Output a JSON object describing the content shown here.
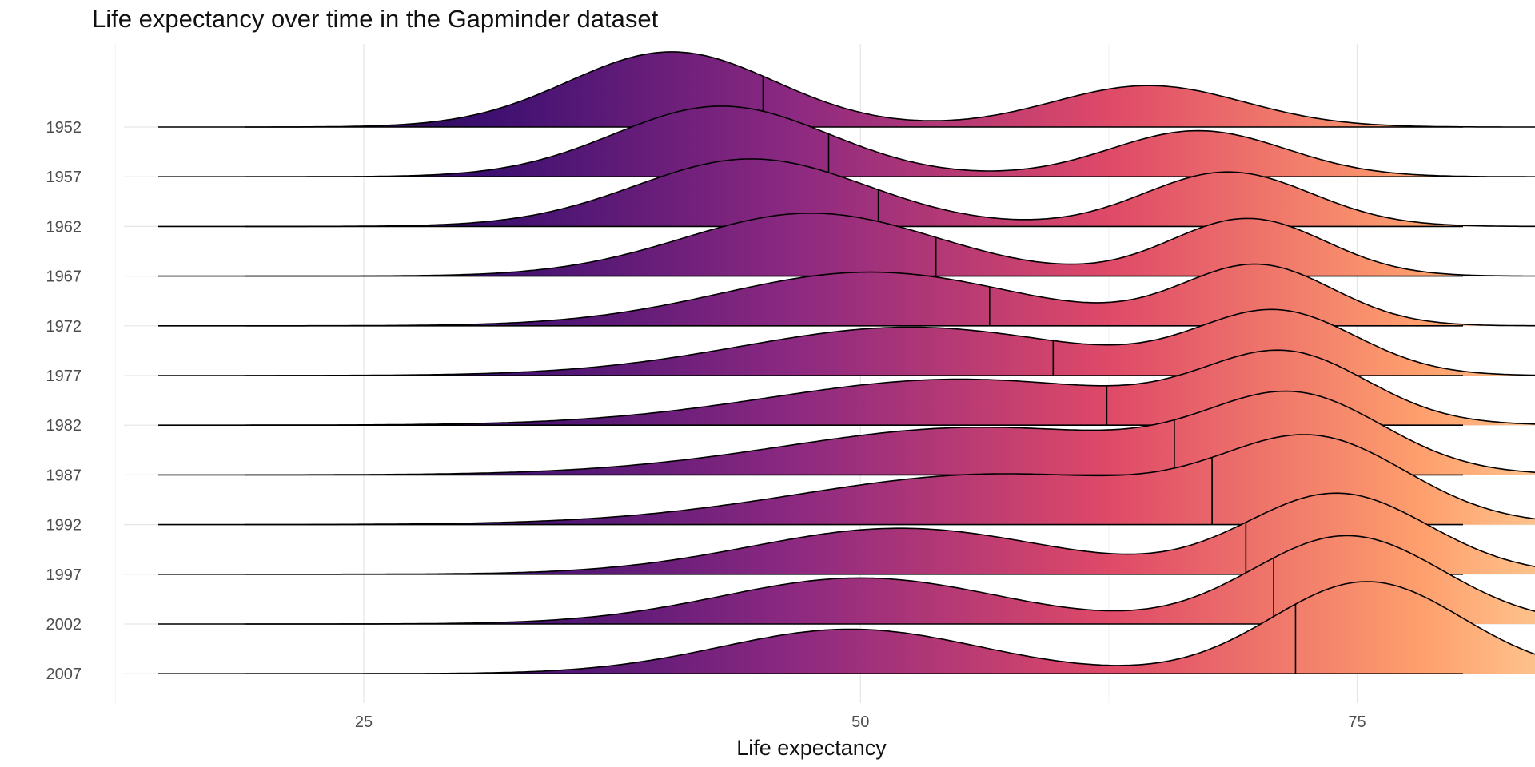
{
  "chart_data": {
    "type": "ridgeline",
    "title": "Life expectancy over time in the Gapminder dataset",
    "xlabel": "Life expectancy",
    "ylabel": "",
    "x_ticks": [
      25,
      50,
      75
    ],
    "xlim": [
      15.5,
      94.5
    ],
    "grid": true,
    "fill_gradient": [
      "#000004",
      "#3b0f70",
      "#8c2981",
      "#de4968",
      "#fe9f6d",
      "#fcfdbf"
    ],
    "categories": [
      "1952",
      "1957",
      "1962",
      "1967",
      "1972",
      "1977",
      "1982",
      "1987",
      "1992",
      "1997",
      "2002",
      "2007"
    ],
    "medians": [
      45.1,
      48.4,
      50.9,
      53.8,
      56.5,
      59.7,
      62.4,
      65.8,
      67.7,
      69.4,
      70.8,
      71.9
    ],
    "series": [
      {
        "name": "1952",
        "peaks": [
          [
            40.5,
            5.2,
            0.98
          ],
          [
            64.5,
            4.8,
            0.54
          ]
        ]
      },
      {
        "name": "1957",
        "peaks": [
          [
            43.0,
            5.4,
            0.92
          ],
          [
            67.0,
            4.4,
            0.6
          ]
        ]
      },
      {
        "name": "1962",
        "peaks": [
          [
            44.5,
            5.8,
            0.88
          ],
          [
            68.5,
            4.2,
            0.71
          ]
        ]
      },
      {
        "name": "1967",
        "peaks": [
          [
            47.5,
            6.4,
            0.82
          ],
          [
            69.5,
            3.9,
            0.75
          ]
        ]
      },
      {
        "name": "1972",
        "peaks": [
          [
            50.5,
            7.5,
            0.7
          ],
          [
            70.0,
            3.8,
            0.78
          ]
        ]
      },
      {
        "name": "1977",
        "peaks": [
          [
            52.5,
            8.5,
            0.63
          ],
          [
            71.0,
            4.0,
            0.8
          ]
        ]
      },
      {
        "name": "1982",
        "peaks": [
          [
            55.0,
            9.5,
            0.6
          ],
          [
            71.5,
            4.1,
            0.84
          ]
        ]
      },
      {
        "name": "1987",
        "peaks": [
          [
            56.0,
            9.8,
            0.62
          ],
          [
            72.0,
            4.4,
            0.92
          ]
        ]
      },
      {
        "name": "1992",
        "peaks": [
          [
            57.0,
            10.0,
            0.66
          ],
          [
            73.0,
            4.6,
            0.98
          ]
        ]
      },
      {
        "name": "1997",
        "peaks": [
          [
            52.0,
            7.5,
            0.6
          ],
          [
            74.0,
            4.6,
            1.05
          ]
        ]
      },
      {
        "name": "2002",
        "peaks": [
          [
            50.0,
            7.0,
            0.6
          ],
          [
            74.5,
            4.8,
            1.15
          ]
        ]
      },
      {
        "name": "2007",
        "peaks": [
          [
            49.5,
            6.5,
            0.58
          ],
          [
            75.5,
            4.8,
            1.2
          ]
        ]
      }
    ]
  }
}
